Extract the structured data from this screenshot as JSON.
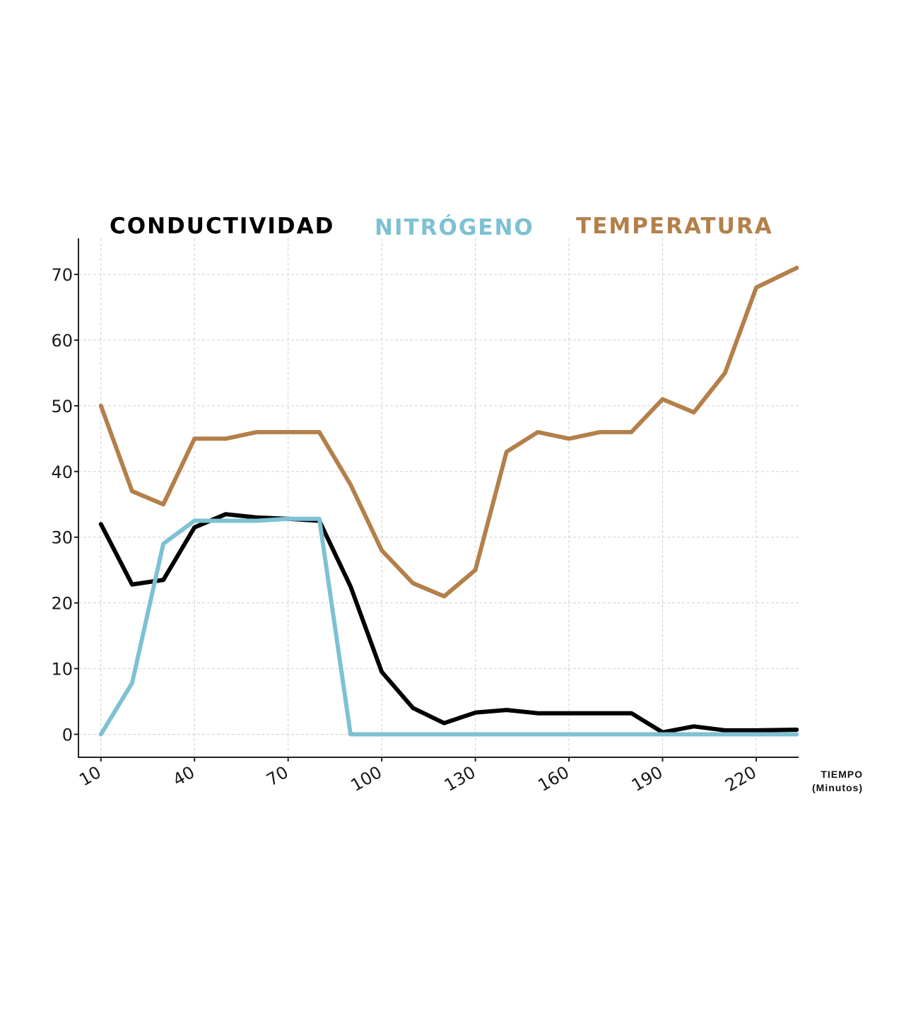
{
  "chart_data": {
    "type": "line",
    "xlabel": [
      "TIEMPO",
      "(Minutos)"
    ],
    "ylabel": "",
    "xlim": [
      2.8,
      233.6
    ],
    "ylim": [
      -3.5,
      75.5
    ],
    "x_ticks": [
      10,
      40,
      70,
      100,
      130,
      160,
      190,
      220
    ],
    "y_ticks": [
      0,
      10,
      20,
      30,
      40,
      50,
      60,
      70
    ],
    "grid": true,
    "legend_placement": "top",
    "x": [
      10,
      20,
      30,
      40,
      50,
      60,
      70,
      80,
      90,
      100,
      110,
      120,
      130,
      140,
      150,
      160,
      170,
      180,
      190,
      200,
      210,
      220,
      233
    ],
    "series": [
      {
        "name": "CONDUCTIVIDAD",
        "color": "#000000",
        "values": [
          32,
          22.8,
          23.5,
          31.5,
          33.5,
          33,
          32.8,
          32.5,
          22.5,
          9.5,
          4,
          1.7,
          3.3,
          3.7,
          3.2,
          3.2,
          3.2,
          3.2,
          0.3,
          1.2,
          0.6,
          0.6,
          0.7
        ]
      },
      {
        "name": "NITRÓGENO",
        "color": "#7dc1d3",
        "values": [
          0,
          7.8,
          29,
          32.5,
          32.5,
          32.5,
          32.8,
          32.8,
          0,
          0,
          0,
          0,
          0,
          0,
          0,
          0,
          0,
          0,
          0,
          0,
          0,
          0,
          0
        ]
      },
      {
        "name": "TEMPERATURA",
        "color": "#b3804a",
        "values": [
          50,
          37,
          35,
          45,
          45,
          46,
          46,
          46,
          38,
          28,
          23,
          21,
          25,
          43,
          46,
          45,
          46,
          46,
          51,
          49,
          55,
          68,
          71
        ]
      }
    ]
  }
}
